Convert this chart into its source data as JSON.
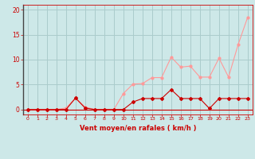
{
  "x": [
    0,
    1,
    2,
    3,
    4,
    5,
    6,
    7,
    8,
    9,
    10,
    11,
    12,
    13,
    14,
    15,
    16,
    17,
    18,
    19,
    20,
    21,
    22,
    23
  ],
  "y_mean": [
    0,
    0,
    0,
    0,
    0,
    2.3,
    0.3,
    0,
    0,
    0,
    0,
    1.5,
    2.2,
    2.2,
    2.2,
    4.0,
    2.2,
    2.2,
    2.2,
    0.2,
    2.2,
    2.2,
    2.2,
    2.2
  ],
  "y_gust": [
    0,
    0,
    0,
    0,
    0.3,
    2.3,
    0.5,
    0,
    0,
    0,
    3.2,
    5.1,
    5.2,
    6.4,
    6.4,
    10.5,
    8.5,
    8.7,
    6.5,
    6.5,
    10.3,
    6.5,
    13.0,
    18.5
  ],
  "bg_color": "#cde8e8",
  "line_color_mean": "#cc0000",
  "line_color_gust": "#ff9999",
  "grid_color": "#aacccc",
  "xlabel": "Vent moyen/en rafales ( km/h )",
  "yticks": [
    0,
    5,
    10,
    15,
    20
  ],
  "xticks": [
    0,
    1,
    2,
    3,
    4,
    5,
    6,
    7,
    8,
    9,
    10,
    11,
    12,
    13,
    14,
    15,
    16,
    17,
    18,
    19,
    20,
    21,
    22,
    23
  ],
  "ylim": [
    -1.0,
    21
  ],
  "xlim": [
    -0.5,
    23.5
  ],
  "xlabel_color": "#cc0000",
  "tick_color": "#cc0000",
  "axis_color": "#cc0000",
  "left_spine_color": "#444444"
}
